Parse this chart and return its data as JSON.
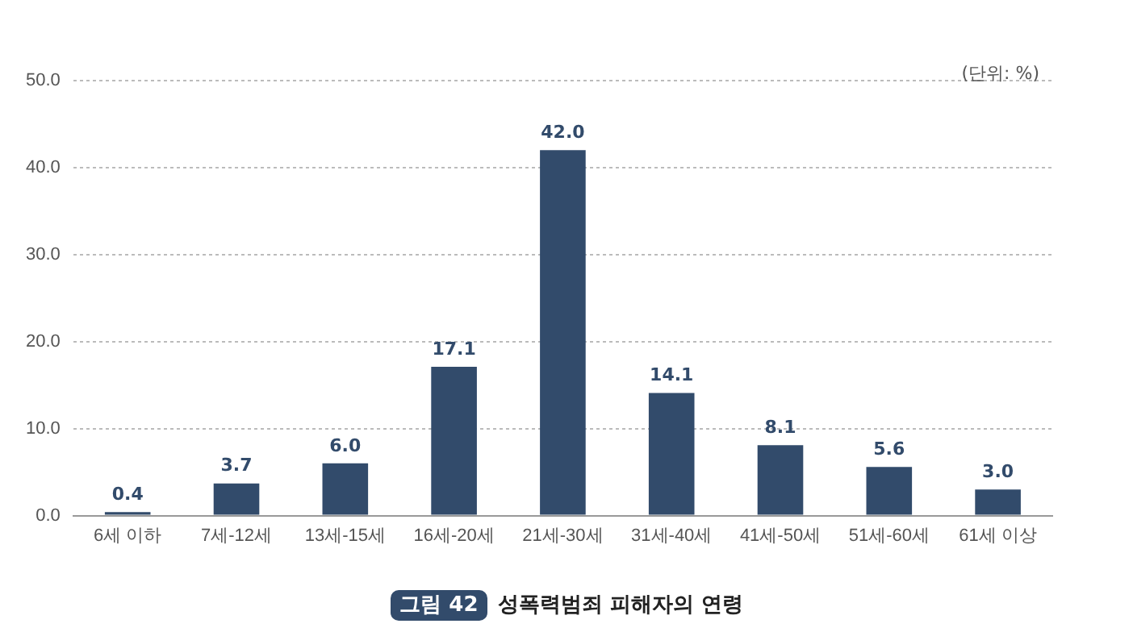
{
  "chart_data": {
    "type": "bar",
    "title": "성폭력범죄 피해자의 연령",
    "annotations": [
      "(단위: %)",
      "그림 42"
    ],
    "categories": [
      "6세 이하",
      "7세-12세",
      "13세-15세",
      "16세-20세",
      "21세-30세",
      "31세-40세",
      "41세-50세",
      "51세-60세",
      "61세 이상"
    ],
    "values": [
      0.4,
      3.7,
      6.0,
      17.1,
      42.0,
      14.1,
      8.1,
      5.6,
      3.0
    ],
    "value_labels": [
      "0.4",
      "3.7",
      "6.0",
      "17.1",
      "42.0",
      "14.1",
      "8.1",
      "5.6",
      "3.0"
    ],
    "color": "#324b6b",
    "ylim": [
      0,
      50
    ],
    "yticks": [
      {
        "value": 0,
        "label": "0.0"
      },
      {
        "value": 10,
        "label": "10.0"
      },
      {
        "value": 20,
        "label": "20.0"
      },
      {
        "value": 30,
        "label": "30.0"
      },
      {
        "value": 40,
        "label": "40.0"
      },
      {
        "value": 50,
        "label": "50.0"
      }
    ],
    "grid": "y",
    "legend": false
  }
}
